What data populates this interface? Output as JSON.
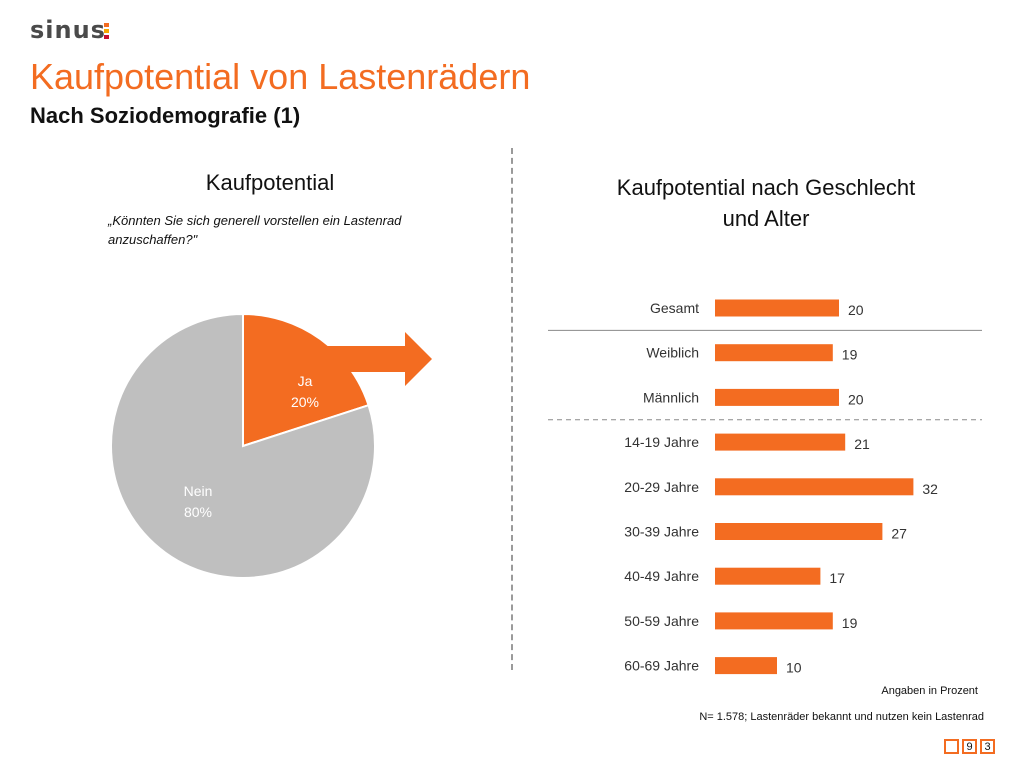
{
  "header": {
    "logo": "sinus",
    "title": "Kaufpotential von Lastenrädern",
    "subtitle": "Nach Soziodemografie (1)"
  },
  "colors": {
    "accent": "#f36c21",
    "pie_other": "#bfbfbf",
    "logo_mark": [
      "#f36c21",
      "#f7a600",
      "#c8102e"
    ]
  },
  "left_panel": {
    "title": "Kaufpotential",
    "question": "„Könnten Sie sich generell vorstellen ein Lastenrad anzuschaffen?\""
  },
  "right_panel": {
    "title_line1": "Kaufpotential nach Geschlecht",
    "title_line2": "und Alter"
  },
  "chart_data": [
    {
      "type": "pie",
      "title": "Kaufpotential",
      "slices": [
        {
          "label": "Ja",
          "value": 20,
          "value_label": "20%",
          "color": "#f36c21"
        },
        {
          "label": "Nein",
          "value": 80,
          "value_label": "80%",
          "color": "#bfbfbf"
        }
      ],
      "annotation": "arrow pointing right from Ja slice"
    },
    {
      "type": "bar",
      "orientation": "horizontal",
      "title": "Kaufpotential nach Geschlecht und Alter",
      "categories": [
        "Gesamt",
        "Weiblich",
        "Männlich",
        "14-19 Jahre",
        "20-29 Jahre",
        "30-39 Jahre",
        "40-49 Jahre",
        "50-59 Jahre",
        "60-69 Jahre"
      ],
      "values": [
        20,
        19,
        20,
        21,
        32,
        27,
        17,
        19,
        10
      ],
      "xlim": [
        0,
        35
      ],
      "color": "#f36c21",
      "separators": [
        {
          "after": "Gesamt",
          "style": "solid"
        },
        {
          "after": "Männlich",
          "style": "dashed"
        }
      ]
    }
  ],
  "footer": {
    "note_unit": "Angaben in Prozent",
    "note_sample": "N= 1.578; Lastenräder bekannt und nutzen kein Lastenrad",
    "page_digits": [
      "",
      "9",
      "3"
    ]
  }
}
